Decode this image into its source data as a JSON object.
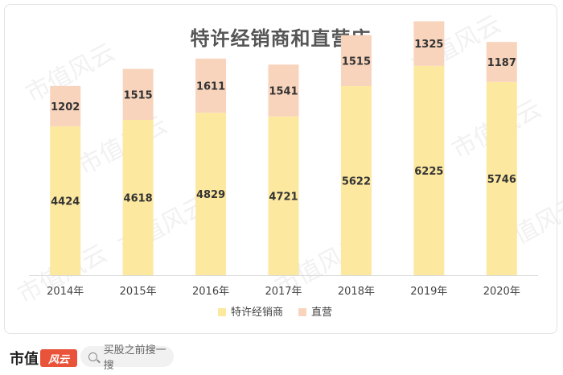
{
  "chart_data": {
    "type": "bar",
    "stacked": true,
    "title": "特许经销商和直营店",
    "categories": [
      "2014年",
      "2015年",
      "2016年",
      "2017年",
      "2018年",
      "2019年",
      "2020年"
    ],
    "series": [
      {
        "name": "特许经销商",
        "color": "#fde8a0",
        "values": [
          4424,
          4618,
          4829,
          4721,
          5622,
          6225,
          5746
        ]
      },
      {
        "name": "直营",
        "color": "#f8d4bd",
        "values": [
          1202,
          1515,
          1611,
          1541,
          1515,
          1325,
          1187
        ]
      }
    ],
    "ylim": [
      0,
      8000
    ],
    "grid": false,
    "legend": "bottom"
  },
  "watermark": "市值风云",
  "footer": {
    "brand_name": "市值",
    "brand_logo_text": "风云",
    "search_icon": "search-icon",
    "search_text": "买股之前搜一搜"
  }
}
